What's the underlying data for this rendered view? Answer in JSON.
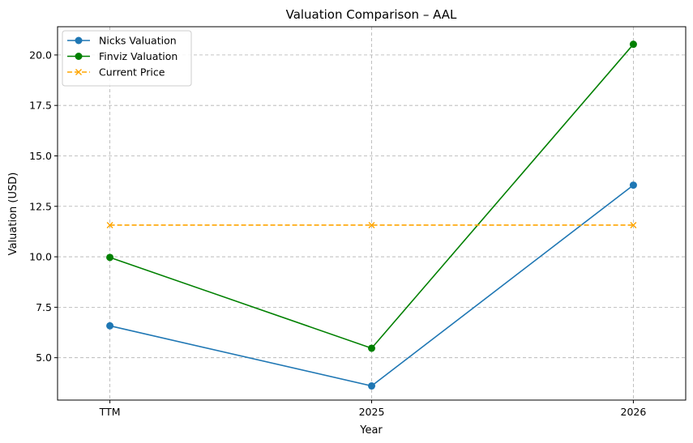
{
  "chart_data": {
    "type": "line",
    "title": "Valuation Comparison – AAL",
    "xlabel": "Year",
    "ylabel": "Valuation (USD)",
    "categories": [
      "TTM",
      "2025",
      "2026"
    ],
    "ylim": [
      2.9,
      21.4
    ],
    "yticks": [
      5.0,
      7.5,
      10.0,
      12.5,
      15.0,
      17.5,
      20.0
    ],
    "ytick_labels": [
      "5.0",
      "7.5",
      "10.0",
      "12.5",
      "15.0",
      "17.5",
      "20.0"
    ],
    "grid": true,
    "legend_position": "top-left",
    "series": [
      {
        "name": "Nicks Valuation",
        "values": [
          6.58,
          3.6,
          13.55
        ],
        "color": "#1f77b4",
        "marker": "circle",
        "linestyle": "solid"
      },
      {
        "name": "Finviz Valuation",
        "values": [
          9.97,
          5.47,
          20.53
        ],
        "color": "#008000",
        "marker": "circle",
        "linestyle": "solid"
      },
      {
        "name": "Current Price",
        "values": [
          11.57,
          11.57,
          11.57
        ],
        "color": "#ffa500",
        "marker": "x",
        "linestyle": "dashed"
      }
    ]
  }
}
